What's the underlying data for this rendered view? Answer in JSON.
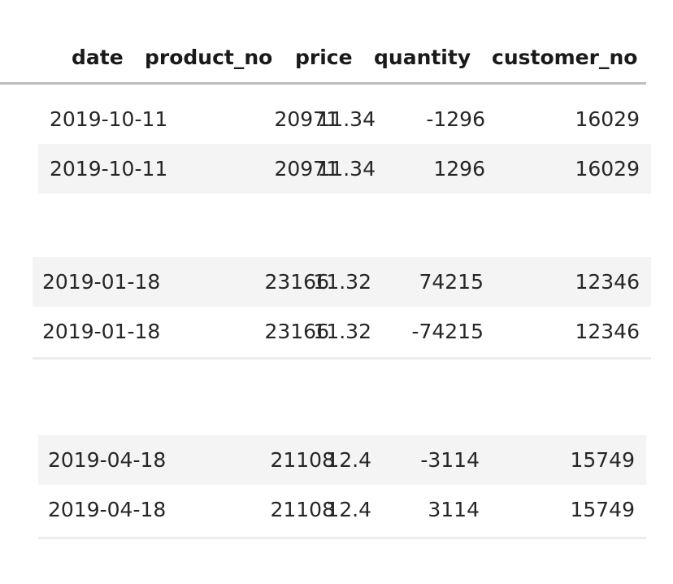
{
  "table": {
    "headers": [
      "date",
      "product_no",
      "price",
      "quantity",
      "customer_no"
    ],
    "groups": [
      {
        "rows": [
          {
            "date": "2019-10-11",
            "product_no": "20971",
            "price": "11.34",
            "quantity": "-1296",
            "customer_no": "16029"
          },
          {
            "date": "2019-10-11",
            "product_no": "20971",
            "price": "11.34",
            "quantity": "1296",
            "customer_no": "16029"
          }
        ]
      },
      {
        "rows": [
          {
            "date": "2019-01-18",
            "product_no": "23166",
            "price": "11.32",
            "quantity": "74215",
            "customer_no": "12346"
          },
          {
            "date": "2019-01-18",
            "product_no": "23166",
            "price": "11.32",
            "quantity": "-74215",
            "customer_no": "12346"
          }
        ]
      },
      {
        "rows": [
          {
            "date": "2019-04-18",
            "product_no": "21108",
            "price": "12.4",
            "quantity": "-3114",
            "customer_no": "15749"
          },
          {
            "date": "2019-04-18",
            "product_no": "21108",
            "price": "12.4",
            "quantity": "3114",
            "customer_no": "15749"
          }
        ]
      }
    ]
  }
}
